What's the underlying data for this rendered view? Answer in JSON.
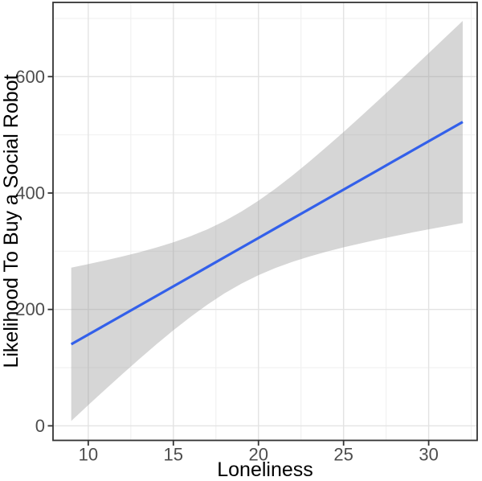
{
  "figure": {
    "background": "#FFFFFF",
    "panel_border_color": "#333333",
    "grid_major_color": "#E3E3E3",
    "grid_minor_color": "#F0F0F0",
    "tick_color": "#333333",
    "tick_label_color": "#4D4D4D",
    "axis_title_color": "#000000",
    "line_color": "#3360EA",
    "ribbon_color": "#999999",
    "ribbon_opacity": 0.4
  },
  "chart_data": {
    "type": "line",
    "title": "",
    "xlabel": "Loneliness",
    "ylabel": "Likelihood To Buy a Social Robot",
    "legend": "none",
    "grid": true,
    "xlim": [
      7.93,
      32.85
    ],
    "ylim": [
      -25,
      727.5
    ],
    "x_ticks": [
      10,
      15,
      20,
      25,
      30
    ],
    "y_ticks": [
      0,
      200,
      400,
      600
    ],
    "x_minor_ticks": [
      12.5,
      17.5,
      22.5,
      27.5,
      32.5
    ],
    "y_minor_ticks": [
      100,
      300,
      500,
      700
    ],
    "series": [
      {
        "name": "linear-fit-with-confidence-band",
        "x": [
          9,
          10,
          11,
          12,
          13,
          14,
          15,
          16,
          17,
          18,
          19,
          20,
          21,
          22,
          23,
          24,
          25,
          26,
          27,
          28,
          29,
          30,
          31,
          32
        ],
        "fit": [
          140.1,
          156.7,
          173.3,
          189.9,
          206.5,
          223.1,
          239.7,
          256.3,
          272.9,
          289.6,
          306.2,
          322.8,
          339.4,
          356.0,
          372.6,
          389.2,
          405.8,
          422.4,
          439.0,
          455.7,
          472.3,
          488.9,
          505.5,
          522.1
        ],
        "lwr": [
          8.4,
          35.6,
          62.4,
          88.9,
          114.8,
          139.9,
          164.1,
          187.0,
          208.2,
          227.5,
          244.3,
          258.8,
          271.2,
          281.8,
          291.0,
          299.2,
          306.7,
          313.5,
          319.9,
          326.1,
          332.0,
          337.6,
          343.0,
          348.4
        ],
        "upr": [
          271.8,
          277.8,
          284.2,
          290.9,
          298.2,
          306.3,
          315.3,
          325.6,
          337.6,
          351.7,
          368.1,
          386.8,
          407.6,
          430.2,
          454.2,
          479.2,
          504.9,
          531.3,
          558.1,
          585.3,
          612.6,
          640.2,
          668.0,
          695.8
        ]
      }
    ]
  }
}
